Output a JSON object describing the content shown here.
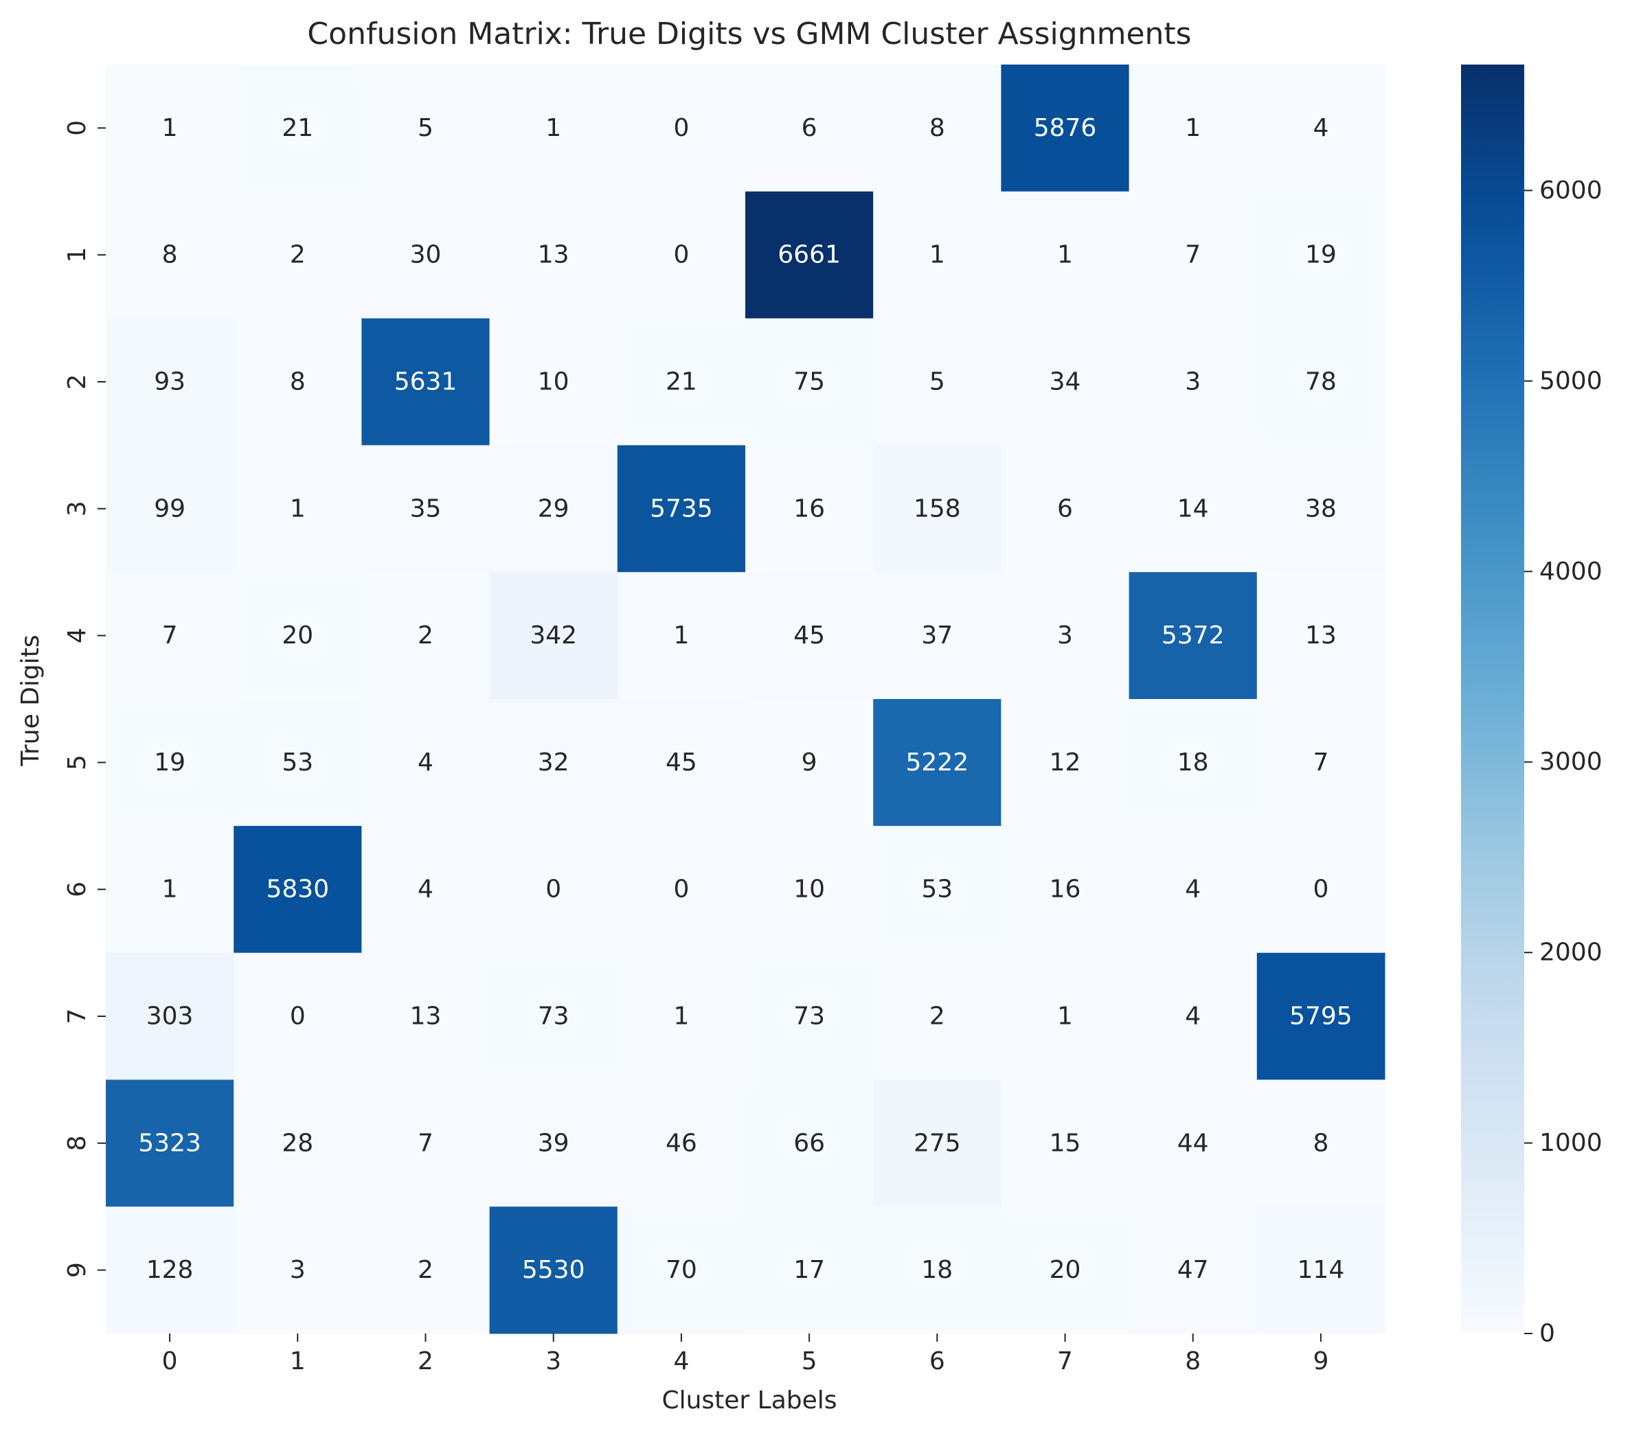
{
  "chart_data": {
    "type": "heatmap",
    "title": "Confusion Matrix: True Digits vs GMM Cluster Assignments",
    "xlabel": "Cluster Labels",
    "ylabel": "True Digits",
    "x_categories": [
      "0",
      "1",
      "2",
      "3",
      "4",
      "5",
      "6",
      "7",
      "8",
      "9"
    ],
    "y_categories": [
      "0",
      "1",
      "2",
      "3",
      "4",
      "5",
      "6",
      "7",
      "8",
      "9"
    ],
    "values": [
      [
        1,
        21,
        5,
        1,
        0,
        6,
        8,
        5876,
        1,
        4
      ],
      [
        8,
        2,
        30,
        13,
        0,
        6661,
        1,
        1,
        7,
        19
      ],
      [
        93,
        8,
        5631,
        10,
        21,
        75,
        5,
        34,
        3,
        78
      ],
      [
        99,
        1,
        35,
        29,
        5735,
        16,
        158,
        6,
        14,
        38
      ],
      [
        7,
        20,
        2,
        342,
        1,
        45,
        37,
        3,
        5372,
        13
      ],
      [
        19,
        53,
        4,
        32,
        45,
        9,
        5222,
        12,
        18,
        7
      ],
      [
        1,
        5830,
        4,
        0,
        0,
        10,
        53,
        16,
        4,
        0
      ],
      [
        303,
        0,
        13,
        73,
        1,
        73,
        2,
        1,
        4,
        5795
      ],
      [
        5323,
        28,
        7,
        39,
        46,
        66,
        275,
        15,
        44,
        8
      ],
      [
        128,
        3,
        2,
        5530,
        70,
        17,
        18,
        20,
        47,
        114
      ]
    ],
    "colormap": "Blues",
    "colorbar": {
      "range": [
        0,
        6661
      ],
      "ticks": [
        0,
        1000,
        2000,
        3000,
        4000,
        5000,
        6000
      ],
      "tick_labels": [
        "0",
        "1000",
        "2000",
        "3000",
        "4000",
        "5000",
        "6000"
      ]
    },
    "annotation_colors": {
      "dark_text": "#262626",
      "light_text": "#ffffff"
    },
    "grid": false,
    "legend": "colorbar-right"
  }
}
